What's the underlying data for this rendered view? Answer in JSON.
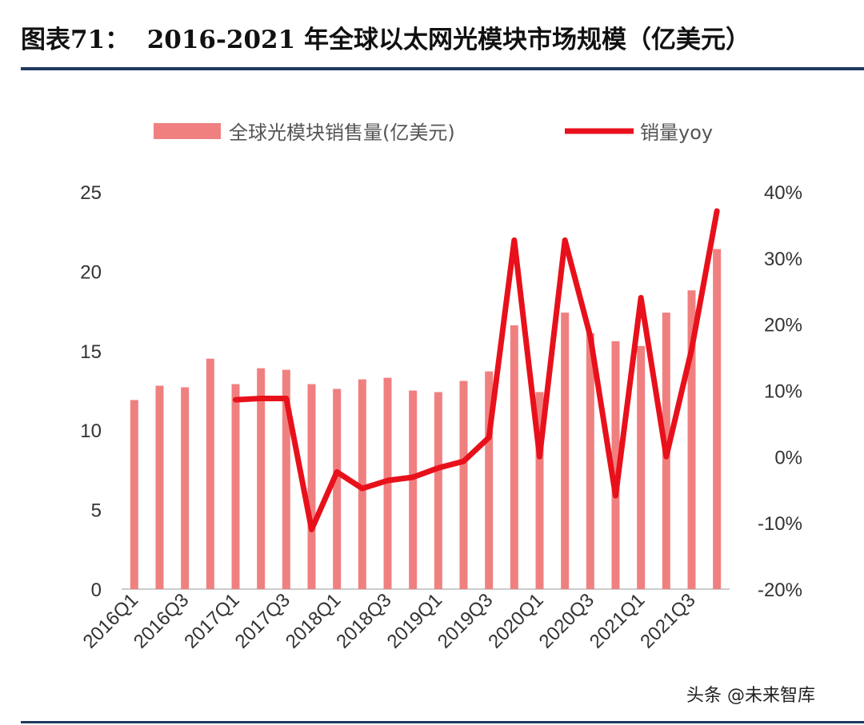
{
  "title": "图表71：  2016-2021 年全球以太网光模块市场规模（亿美元）",
  "watermark": "头条 @未来智库",
  "chart_data": {
    "type": "bar+line",
    "categories": [
      "2016Q1",
      "2016Q2",
      "2016Q3",
      "2016Q4",
      "2017Q1",
      "2017Q2",
      "2017Q3",
      "2017Q4",
      "2018Q1",
      "2018Q2",
      "2018Q3",
      "2018Q4",
      "2019Q1",
      "2019Q2",
      "2019Q3",
      "2019Q4",
      "2020Q1",
      "2020Q2",
      "2020Q3",
      "2020Q4",
      "2021Q1",
      "2021Q2",
      "2021Q3",
      "2021Q4"
    ],
    "xtick_labels": [
      "2016Q1",
      "2016Q3",
      "2017Q1",
      "2017Q3",
      "2018Q1",
      "2018Q3",
      "2019Q1",
      "2019Q3",
      "2020Q1",
      "2020Q3",
      "2021Q1",
      "2021Q3"
    ],
    "series": [
      {
        "name": "全球光模块销售量(亿美元)",
        "type": "bar",
        "axis": "left",
        "color": "#f08080",
        "values": [
          11.9,
          12.8,
          12.7,
          14.5,
          12.9,
          13.9,
          13.8,
          12.9,
          12.6,
          13.2,
          13.3,
          12.5,
          12.4,
          13.1,
          13.7,
          16.6,
          12.4,
          17.4,
          16.1,
          15.6,
          15.3,
          17.4,
          18.8,
          21.4
        ]
      },
      {
        "name": "销量yoy",
        "type": "line",
        "axis": "right",
        "color": "#e8111b",
        "values": [
          null,
          null,
          null,
          null,
          8.6,
          8.8,
          8.8,
          -11.0,
          -2.3,
          -4.8,
          -3.6,
          -3.1,
          -1.7,
          -0.7,
          2.9,
          32.7,
          0.0,
          32.7,
          18.2,
          -5.9,
          24.0,
          0.0,
          16.2,
          37.1
        ]
      }
    ],
    "ylim_left": [
      0,
      25
    ],
    "yticks_left": [
      "0",
      "5",
      "10",
      "15",
      "20",
      "25"
    ],
    "ylim_right": [
      -20,
      40
    ],
    "yticks_right": [
      "-20%",
      "-10%",
      "0%",
      "10%",
      "20%",
      "30%",
      "40%"
    ],
    "legend": "top",
    "grid": false
  }
}
